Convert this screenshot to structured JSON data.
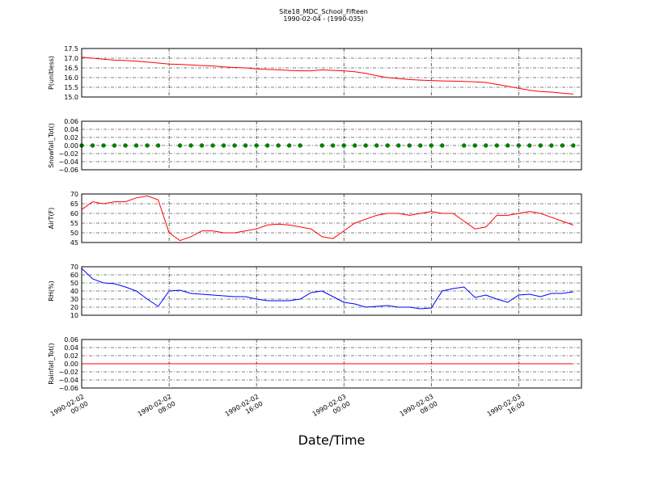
{
  "chart_data": [
    {
      "type": "line",
      "title": "Site18_MDC_School_Fifteen",
      "subtitle": "1990-02-04 - (1990-035)",
      "y_label": "P(unitless)",
      "color": "#ff0000",
      "grid": true,
      "x": [
        "1990-02-02 00:00",
        "1990-02-02 01:00",
        "1990-02-02 02:00",
        "1990-02-02 03:00",
        "1990-02-02 04:00",
        "1990-02-02 05:00",
        "1990-02-02 06:00",
        "1990-02-02 07:00",
        "1990-02-02 08:00",
        "1990-02-02 09:00",
        "1990-02-02 10:00",
        "1990-02-02 11:00",
        "1990-02-02 12:00",
        "1990-02-02 13:00",
        "1990-02-02 14:00",
        "1990-02-02 15:00",
        "1990-02-02 16:00",
        "1990-02-02 17:00",
        "1990-02-02 18:00",
        "1990-02-02 19:00",
        "1990-02-02 20:00",
        "1990-02-02 21:00",
        "1990-02-02 22:00",
        "1990-02-02 23:00",
        "1990-02-03 00:00",
        "1990-02-03 01:00",
        "1990-02-03 02:00",
        "1990-02-03 03:00",
        "1990-02-03 04:00",
        "1990-02-03 05:00",
        "1990-02-03 06:00",
        "1990-02-03 07:00",
        "1990-02-03 08:00",
        "1990-02-03 09:00",
        "1990-02-03 10:00",
        "1990-02-03 11:00",
        "1990-02-03 12:00",
        "1990-02-03 13:00",
        "1990-02-03 14:00",
        "1990-02-03 15:00",
        "1990-02-03 16:00",
        "1990-02-03 17:00",
        "1990-02-03 18:00",
        "1990-02-03 19:00",
        "1990-02-03 20:00",
        "1990-02-03 21:00"
      ],
      "values": [
        17.05,
        17.0,
        16.95,
        16.9,
        16.88,
        16.85,
        16.8,
        16.75,
        16.7,
        16.68,
        16.65,
        16.62,
        16.6,
        16.55,
        16.52,
        16.5,
        16.45,
        16.42,
        16.4,
        16.37,
        16.35,
        16.35,
        16.4,
        16.37,
        16.35,
        16.3,
        16.22,
        16.1,
        16.0,
        15.95,
        15.9,
        15.87,
        15.85,
        15.83,
        15.82,
        15.8,
        15.78,
        15.75,
        15.65,
        15.55,
        15.45,
        15.35,
        15.28,
        15.25,
        15.2,
        15.15
      ],
      "xlim": [
        "1990-02-02 00:00",
        "1990-02-03 21:45"
      ],
      "xticks": [
        "1990-02-02 00:00",
        "1990-02-02 08:00",
        "1990-02-02 16:00",
        "1990-02-03 00:00",
        "1990-02-03 08:00",
        "1990-02-03 16:00"
      ],
      "ylim": [
        15.0,
        17.5
      ],
      "yticks": [
        {
          "value": 15,
          "label": "15.0"
        },
        {
          "value": 15.5,
          "label": "15.5"
        },
        {
          "value": 16,
          "label": "16.0"
        },
        {
          "value": 16.5,
          "label": "16.5"
        },
        {
          "value": 17,
          "label": "17.0"
        },
        {
          "value": 17.5,
          "label": "17.5"
        }
      ]
    },
    {
      "type": "scatter",
      "y_label": "Snowfall_Tot()",
      "color": "#008000",
      "grid": true,
      "x": [
        "1990-02-02 00:00",
        "1990-02-02 01:00",
        "1990-02-02 02:00",
        "1990-02-02 03:00",
        "1990-02-02 04:00",
        "1990-02-02 05:00",
        "1990-02-02 06:00",
        "1990-02-02 07:00",
        "1990-02-02 08:00",
        "1990-02-02 09:00",
        "1990-02-02 10:00",
        "1990-02-02 11:00",
        "1990-02-02 12:00",
        "1990-02-02 13:00",
        "1990-02-02 14:00",
        "1990-02-02 15:00",
        "1990-02-02 16:00",
        "1990-02-02 17:00",
        "1990-02-02 18:00",
        "1990-02-02 19:00",
        "1990-02-02 20:00",
        "1990-02-02 21:00",
        "1990-02-02 22:00",
        "1990-02-02 23:00",
        "1990-02-03 00:00",
        "1990-02-03 01:00",
        "1990-02-03 02:00",
        "1990-02-03 03:00",
        "1990-02-03 04:00",
        "1990-02-03 05:00",
        "1990-02-03 06:00",
        "1990-02-03 07:00",
        "1990-02-03 08:00",
        "1990-02-03 09:00",
        "1990-02-03 10:00",
        "1990-02-03 11:00",
        "1990-02-03 12:00",
        "1990-02-03 13:00",
        "1990-02-03 14:00",
        "1990-02-03 15:00",
        "1990-02-03 16:00",
        "1990-02-03 17:00",
        "1990-02-03 18:00",
        "1990-02-03 19:00",
        "1990-02-03 20:00",
        "1990-02-03 21:00"
      ],
      "values": [
        0,
        0,
        0,
        0,
        0,
        0,
        0,
        0,
        null,
        0,
        0,
        0,
        0,
        0,
        0,
        0,
        0,
        0,
        0,
        0,
        0,
        null,
        0,
        0,
        0,
        0,
        0,
        0,
        0,
        0,
        0,
        0,
        0,
        0,
        null,
        0,
        0,
        0,
        0,
        0,
        0,
        0,
        0,
        0,
        0,
        0
      ],
      "xlim": [
        "1990-02-02 00:00",
        "1990-02-03 21:45"
      ],
      "xticks": [
        "1990-02-02 00:00",
        "1990-02-02 08:00",
        "1990-02-02 16:00",
        "1990-02-03 00:00",
        "1990-02-03 08:00",
        "1990-02-03 16:00"
      ],
      "ylim": [
        -0.06,
        0.06
      ],
      "yticks": [
        {
          "value": -0.06,
          "label": "−0.06"
        },
        {
          "value": -0.04,
          "label": "−0.04"
        },
        {
          "value": -0.02,
          "label": "−0.02"
        },
        {
          "value": 0,
          "label": "0.00"
        },
        {
          "value": 0.02,
          "label": "0.02"
        },
        {
          "value": 0.04,
          "label": "0.04"
        },
        {
          "value": 0.06,
          "label": "0.06"
        }
      ]
    },
    {
      "type": "line",
      "y_label": "AirT(F)",
      "color": "#ff0000",
      "grid": true,
      "x": [
        "1990-02-02 00:00",
        "1990-02-02 01:00",
        "1990-02-02 02:00",
        "1990-02-02 03:00",
        "1990-02-02 04:00",
        "1990-02-02 05:00",
        "1990-02-02 06:00",
        "1990-02-02 07:00",
        "1990-02-02 08:00",
        "1990-02-02 09:00",
        "1990-02-02 10:00",
        "1990-02-02 11:00",
        "1990-02-02 12:00",
        "1990-02-02 13:00",
        "1990-02-02 14:00",
        "1990-02-02 15:00",
        "1990-02-02 16:00",
        "1990-02-02 17:00",
        "1990-02-02 18:00",
        "1990-02-02 19:00",
        "1990-02-02 20:00",
        "1990-02-02 21:00",
        "1990-02-02 22:00",
        "1990-02-02 23:00",
        "1990-02-03 00:00",
        "1990-02-03 01:00",
        "1990-02-03 02:00",
        "1990-02-03 03:00",
        "1990-02-03 04:00",
        "1990-02-03 05:00",
        "1990-02-03 06:00",
        "1990-02-03 07:00",
        "1990-02-03 08:00",
        "1990-02-03 09:00",
        "1990-02-03 10:00",
        "1990-02-03 11:00",
        "1990-02-03 12:00",
        "1990-02-03 13:00",
        "1990-02-03 14:00",
        "1990-02-03 15:00",
        "1990-02-03 16:00",
        "1990-02-03 17:00",
        "1990-02-03 18:00",
        "1990-02-03 19:00",
        "1990-02-03 20:00",
        "1990-02-03 21:00"
      ],
      "values": [
        62,
        66,
        65,
        66,
        66,
        68,
        69,
        67,
        50,
        46,
        48,
        51,
        51,
        50,
        50,
        51,
        52,
        54,
        54.5,
        54,
        53,
        52,
        48,
        47,
        51,
        55,
        57,
        59,
        60,
        60,
        59,
        60,
        61,
        60,
        60,
        56,
        52,
        53,
        59,
        59,
        60,
        61,
        60,
        58,
        56,
        54
      ],
      "xlim": [
        "1990-02-02 00:00",
        "1990-02-03 21:45"
      ],
      "xticks": [
        "1990-02-02 00:00",
        "1990-02-02 08:00",
        "1990-02-02 16:00",
        "1990-02-03 00:00",
        "1990-02-03 08:00",
        "1990-02-03 16:00"
      ],
      "ylim": [
        45,
        70
      ],
      "yticks": [
        45,
        50,
        55,
        60,
        65,
        70
      ]
    },
    {
      "type": "line",
      "y_label": "RH(%)",
      "color": "#0000ff",
      "grid": true,
      "x": [
        "1990-02-02 00:00",
        "1990-02-02 01:00",
        "1990-02-02 02:00",
        "1990-02-02 03:00",
        "1990-02-02 04:00",
        "1990-02-02 05:00",
        "1990-02-02 06:00",
        "1990-02-02 07:00",
        "1990-02-02 08:00",
        "1990-02-02 09:00",
        "1990-02-02 10:00",
        "1990-02-02 11:00",
        "1990-02-02 12:00",
        "1990-02-02 13:00",
        "1990-02-02 14:00",
        "1990-02-02 15:00",
        "1990-02-02 16:00",
        "1990-02-02 17:00",
        "1990-02-02 18:00",
        "1990-02-02 19:00",
        "1990-02-02 20:00",
        "1990-02-02 21:00",
        "1990-02-02 22:00",
        "1990-02-02 23:00",
        "1990-02-03 00:00",
        "1990-02-03 01:00",
        "1990-02-03 02:00",
        "1990-02-03 03:00",
        "1990-02-03 04:00",
        "1990-02-03 05:00",
        "1990-02-03 06:00",
        "1990-02-03 07:00",
        "1990-02-03 08:00",
        "1990-02-03 09:00",
        "1990-02-03 10:00",
        "1990-02-03 11:00",
        "1990-02-03 12:00",
        "1990-02-03 13:00",
        "1990-02-03 14:00",
        "1990-02-03 15:00",
        "1990-02-03 16:00",
        "1990-02-03 17:00",
        "1990-02-03 18:00",
        "1990-02-03 19:00",
        "1990-02-03 20:00",
        "1990-02-03 21:00"
      ],
      "values": [
        68,
        55,
        50,
        49,
        45,
        40,
        30,
        21,
        40,
        41,
        37,
        36,
        35,
        34,
        33,
        33,
        30,
        28,
        28,
        28,
        30,
        38,
        40,
        33,
        26,
        24,
        20,
        21,
        22,
        20,
        20,
        18,
        19,
        40,
        43,
        45,
        32,
        35,
        30,
        26,
        35,
        36,
        33,
        37,
        37,
        39
      ],
      "xlim": [
        "1990-02-02 00:00",
        "1990-02-03 21:45"
      ],
      "xticks": [
        "1990-02-02 00:00",
        "1990-02-02 08:00",
        "1990-02-02 16:00",
        "1990-02-03 00:00",
        "1990-02-03 08:00",
        "1990-02-03 16:00"
      ],
      "ylim": [
        10,
        70
      ],
      "yticks": [
        10,
        20,
        30,
        40,
        50,
        60,
        70
      ]
    },
    {
      "type": "line",
      "y_label": "Rainfall_Tot()",
      "x_label": "Date/Time",
      "color": "#ff0000",
      "grid": true,
      "x": [
        "1990-02-02 00:00",
        "1990-02-02 01:00",
        "1990-02-02 02:00",
        "1990-02-02 03:00",
        "1990-02-02 04:00",
        "1990-02-02 05:00",
        "1990-02-02 06:00",
        "1990-02-02 07:00",
        "1990-02-02 08:00",
        "1990-02-02 09:00",
        "1990-02-02 10:00",
        "1990-02-02 11:00",
        "1990-02-02 12:00",
        "1990-02-02 13:00",
        "1990-02-02 14:00",
        "1990-02-02 15:00",
        "1990-02-02 16:00",
        "1990-02-02 17:00",
        "1990-02-02 18:00",
        "1990-02-02 19:00",
        "1990-02-02 20:00",
        "1990-02-02 21:00",
        "1990-02-02 22:00",
        "1990-02-02 23:00",
        "1990-02-03 00:00",
        "1990-02-03 01:00",
        "1990-02-03 02:00",
        "1990-02-03 03:00",
        "1990-02-03 04:00",
        "1990-02-03 05:00",
        "1990-02-03 06:00",
        "1990-02-03 07:00",
        "1990-02-03 08:00",
        "1990-02-03 09:00",
        "1990-02-03 10:00",
        "1990-02-03 11:00",
        "1990-02-03 12:00",
        "1990-02-03 13:00",
        "1990-02-03 14:00",
        "1990-02-03 15:00",
        "1990-02-03 16:00",
        "1990-02-03 17:00",
        "1990-02-03 18:00",
        "1990-02-03 19:00",
        "1990-02-03 20:00",
        "1990-02-03 21:00"
      ],
      "values": [
        0,
        0,
        0,
        0,
        0,
        0,
        0,
        0,
        0,
        0,
        0,
        0,
        0,
        0,
        0,
        0,
        0,
        0,
        0,
        0,
        0,
        0,
        0,
        0,
        0,
        0,
        0,
        0,
        0,
        0,
        0,
        0,
        0,
        0,
        0,
        0,
        0,
        0,
        0,
        0,
        0,
        0,
        0,
        0,
        0,
        0
      ],
      "xlim": [
        "1990-02-02 00:00",
        "1990-02-03 21:45"
      ],
      "xticks": [
        "1990-02-02 00:00",
        "1990-02-02 08:00",
        "1990-02-02 16:00",
        "1990-02-03 00:00",
        "1990-02-03 08:00",
        "1990-02-03 16:00"
      ],
      "ylim": [
        -0.06,
        0.06
      ],
      "yticks": [
        {
          "value": -0.06,
          "label": "−0.06"
        },
        {
          "value": -0.04,
          "label": "−0.04"
        },
        {
          "value": -0.02,
          "label": "−0.02"
        },
        {
          "value": 0,
          "label": "0.00"
        },
        {
          "value": 0.02,
          "label": "0.02"
        },
        {
          "value": 0.04,
          "label": "0.04"
        },
        {
          "value": 0.06,
          "label": "0.06"
        }
      ]
    }
  ]
}
